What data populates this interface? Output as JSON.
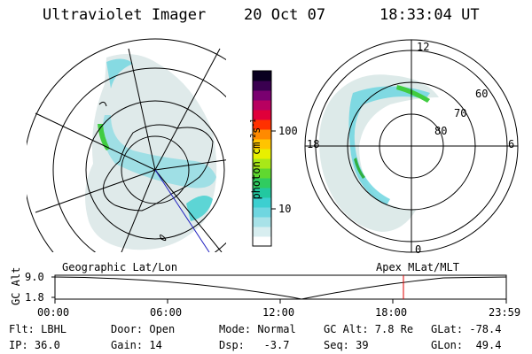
{
  "header": {
    "instrument": "Ultraviolet Imager",
    "date": "20 Oct 07",
    "time": "18:33:04 UT"
  },
  "colorbar": {
    "unit_label": "photon cm",
    "unit_exp1": "-2",
    "unit_s": "s",
    "unit_exp2": "-1",
    "ticks": [
      "100",
      "10"
    ],
    "colors": [
      "#ffffff",
      "#d8eef0",
      "#a8e2e8",
      "#6fd6e0",
      "#3ccfd0",
      "#22c8a0",
      "#30cc60",
      "#60d830",
      "#a8e818",
      "#e8f000",
      "#ffc400",
      "#ff8a00",
      "#ff3000",
      "#e0003a",
      "#b80060",
      "#7a0070",
      "#3a0050",
      "#0a0020"
    ]
  },
  "maps": {
    "left_label": "Geographic Lat/Lon",
    "right_label": "Apex MLat/MLT",
    "right_mlt_labels": [
      "12",
      "18",
      "6",
      "0"
    ],
    "right_lat_labels": [
      "60",
      "70",
      "80"
    ]
  },
  "altitude_plot": {
    "ylabel": "GC Alt",
    "yticks": [
      "9.0",
      "1.8"
    ],
    "xticks": [
      "00:00",
      "06:00",
      "12:00",
      "18:00",
      "23:59"
    ]
  },
  "info": {
    "filter": "Flt: LBHL",
    "ip": "IP: 36.0",
    "door": "Door: Open",
    "gain": "Gain: 14",
    "mode": "Mode: Normal",
    "dsp": "Dsp:   -3.7",
    "gc_alt": "GC Alt: 7.8 Re",
    "seq": "Seq: 39",
    "glat": "GLat: -78.4",
    "glon": "GLon:  49.4"
  }
}
